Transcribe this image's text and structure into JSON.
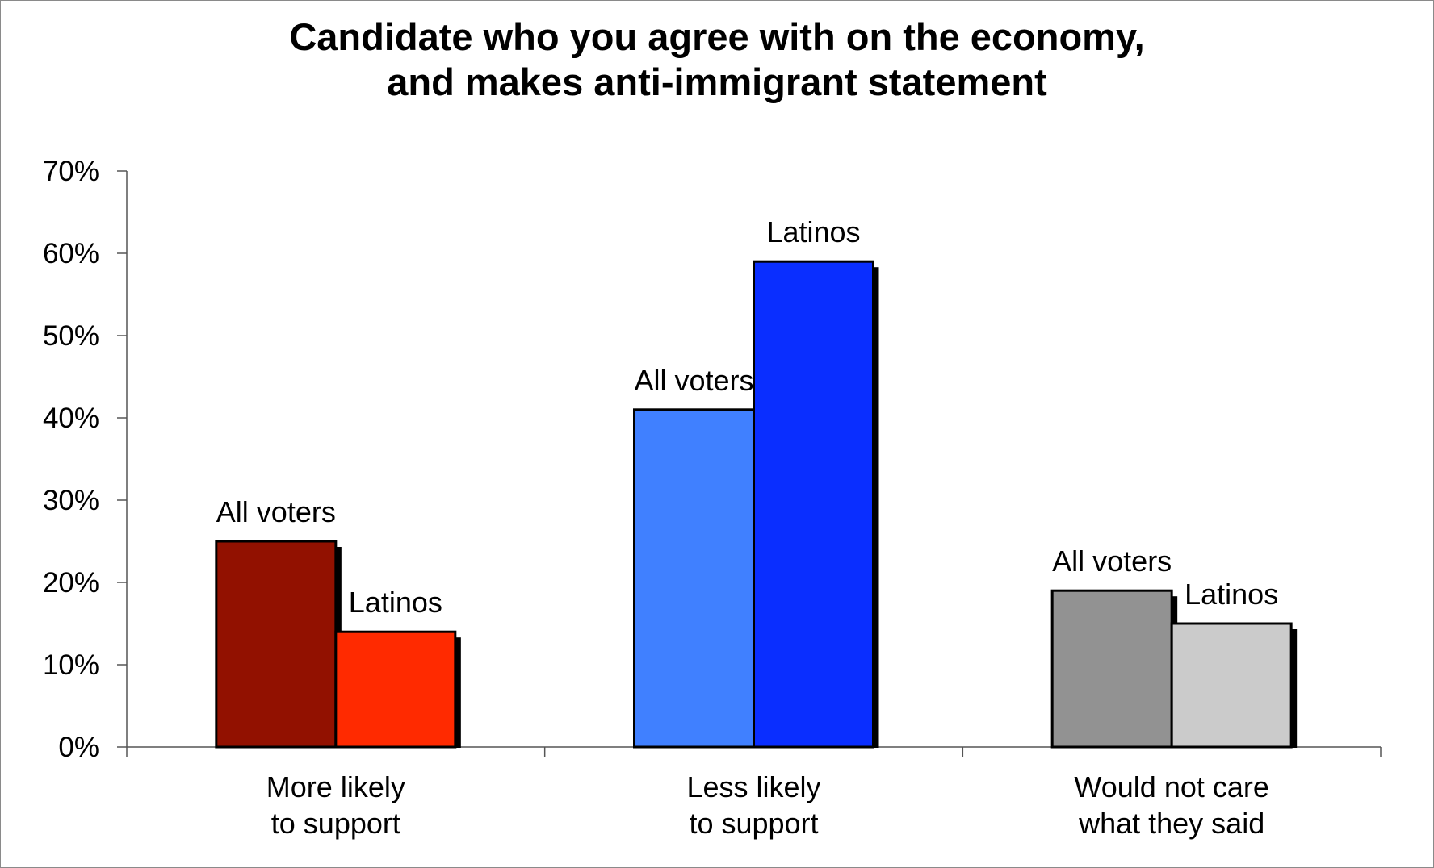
{
  "chart_data": {
    "type": "bar",
    "title_lines": [
      "Candidate who you agree with on the economy,",
      "and makes anti-immigrant statement"
    ],
    "categories": [
      {
        "lines": [
          "More likely",
          "to support"
        ]
      },
      {
        "lines": [
          "Less likely",
          "to support"
        ]
      },
      {
        "lines": [
          "Would not care",
          "what they said"
        ]
      }
    ],
    "bar_groups": [
      {
        "values": [
          25,
          14
        ],
        "labels": [
          "All voters",
          "Latinos"
        ],
        "colors": [
          "#921100",
          "#FF2A00"
        ]
      },
      {
        "values": [
          41,
          59
        ],
        "labels": [
          "All voters",
          "Latinos"
        ],
        "colors": [
          "#4080FF",
          "#0A2EFF"
        ]
      },
      {
        "values": [
          19,
          15
        ],
        "labels": [
          "All voters",
          "Latinos"
        ],
        "colors": [
          "#929292",
          "#CBCBCB"
        ]
      }
    ],
    "ylim": [
      0,
      70
    ],
    "yticks": [
      "0%",
      "10%",
      "20%",
      "30%",
      "40%",
      "50%",
      "60%",
      "70%"
    ],
    "ytick_values": [
      0,
      10,
      20,
      30,
      40,
      50,
      60,
      70
    ],
    "grid": false,
    "legend": "none",
    "bar_shadow_color": "#000000",
    "bar_border_color": "#000000"
  }
}
